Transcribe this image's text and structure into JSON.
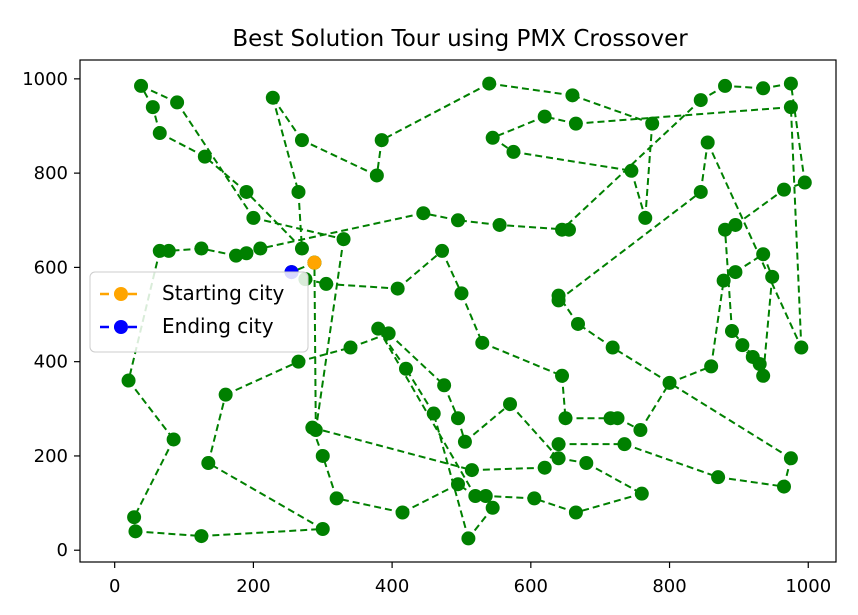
{
  "chart_data": {
    "type": "line",
    "title": "Best Solution Tour using PMX Crossover",
    "xlabel": "",
    "ylabel": "",
    "xlim": [
      -50,
      1040
    ],
    "ylim": [
      -25,
      1040
    ],
    "x_ticks": [
      0,
      200,
      400,
      600,
      800,
      1000
    ],
    "y_ticks": [
      0,
      200,
      400,
      600,
      800,
      1000
    ],
    "grid": false,
    "legend_position": "center-left",
    "colors": {
      "tour": "#008000",
      "start": "#ffa500",
      "end": "#0000ff"
    },
    "series": [
      {
        "name": "tour",
        "style": "dashed",
        "color": "#008000",
        "points": [
          [
            288,
            610
          ],
          [
            255,
            590
          ],
          [
            275,
            575
          ],
          [
            305,
            565
          ],
          [
            408,
            555
          ],
          [
            472,
            635
          ],
          [
            500,
            545
          ],
          [
            530,
            440
          ],
          [
            645,
            370
          ],
          [
            650,
            280
          ],
          [
            715,
            280
          ],
          [
            725,
            280
          ],
          [
            758,
            255
          ],
          [
            800,
            355
          ],
          [
            860,
            390
          ],
          [
            878,
            572
          ],
          [
            895,
            590
          ],
          [
            935,
            628
          ],
          [
            948,
            580
          ],
          [
            935,
            370
          ],
          [
            905,
            435
          ],
          [
            920,
            410
          ],
          [
            930,
            395
          ],
          [
            890,
            465
          ],
          [
            880,
            680
          ],
          [
            895,
            690
          ],
          [
            965,
            765
          ],
          [
            995,
            780
          ],
          [
            975,
            990
          ],
          [
            935,
            980
          ],
          [
            880,
            985
          ],
          [
            845,
            955
          ],
          [
            645,
            680
          ],
          [
            655,
            680
          ],
          [
            555,
            690
          ],
          [
            495,
            700
          ],
          [
            445,
            715
          ],
          [
            210,
            640
          ],
          [
            190,
            630
          ],
          [
            175,
            625
          ],
          [
            125,
            640
          ],
          [
            78,
            635
          ],
          [
            65,
            635
          ],
          [
            20,
            360
          ],
          [
            85,
            235
          ],
          [
            28,
            70
          ],
          [
            30,
            40
          ],
          [
            125,
            30
          ],
          [
            300,
            45
          ],
          [
            135,
            185
          ],
          [
            160,
            330
          ],
          [
            265,
            400
          ],
          [
            340,
            430
          ],
          [
            395,
            460
          ],
          [
            475,
            350
          ],
          [
            495,
            280
          ],
          [
            505,
            230
          ],
          [
            570,
            310
          ],
          [
            640,
            195
          ],
          [
            680,
            185
          ],
          [
            760,
            120
          ],
          [
            665,
            80
          ],
          [
            605,
            110
          ],
          [
            535,
            115
          ],
          [
            545,
            90
          ],
          [
            510,
            25
          ],
          [
            460,
            290
          ],
          [
            420,
            385
          ],
          [
            380,
            470
          ],
          [
            520,
            115
          ],
          [
            495,
            140
          ],
          [
            415,
            80
          ],
          [
            320,
            110
          ],
          [
            300,
            200
          ],
          [
            285,
            260
          ],
          [
            515,
            170
          ],
          [
            620,
            175
          ],
          [
            640,
            225
          ],
          [
            735,
            225
          ],
          [
            870,
            155
          ],
          [
            965,
            135
          ],
          [
            975,
            195
          ],
          [
            718,
            430
          ],
          [
            668,
            480
          ],
          [
            640,
            540
          ],
          [
            640,
            530
          ],
          [
            845,
            760
          ],
          [
            855,
            865
          ],
          [
            990,
            430
          ],
          [
            975,
            940
          ],
          [
            665,
            905
          ],
          [
            620,
            920
          ],
          [
            545,
            875
          ],
          [
            575,
            845
          ],
          [
            745,
            805
          ],
          [
            765,
            705
          ],
          [
            775,
            905
          ],
          [
            660,
            965
          ],
          [
            540,
            990
          ],
          [
            385,
            870
          ],
          [
            378,
            795
          ],
          [
            270,
            870
          ],
          [
            228,
            960
          ],
          [
            265,
            760
          ],
          [
            270,
            640
          ],
          [
            190,
            760
          ],
          [
            130,
            835
          ],
          [
            65,
            885
          ],
          [
            55,
            940
          ],
          [
            38,
            985
          ],
          [
            90,
            950
          ],
          [
            200,
            705
          ],
          [
            330,
            660
          ],
          [
            290,
            255
          ],
          [
            288,
            610
          ]
        ]
      }
    ],
    "start_city": {
      "label": "Starting city",
      "x": 288,
      "y": 610
    },
    "end_city": {
      "label": "Ending city",
      "x": 255,
      "y": 590
    }
  }
}
